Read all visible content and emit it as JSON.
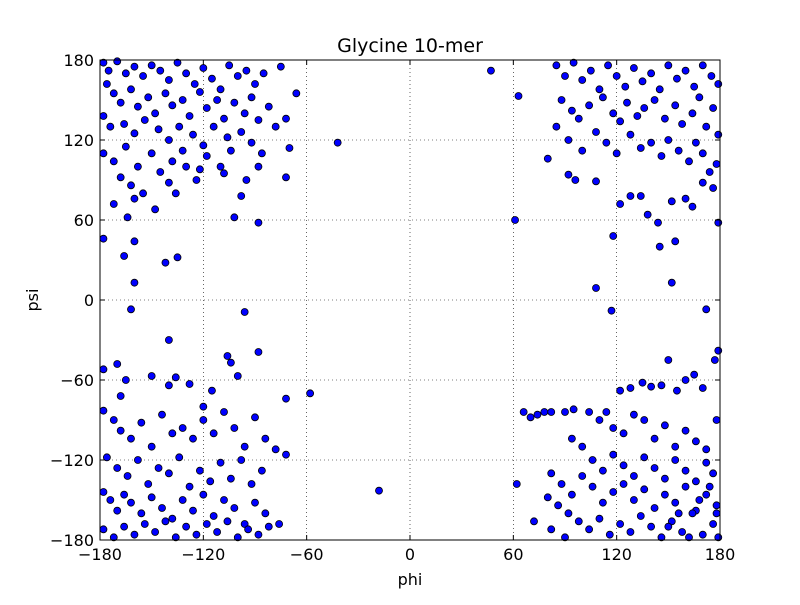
{
  "chart_data": {
    "type": "scatter",
    "title": "Glycine 10-mer",
    "xlabel": "phi",
    "ylabel": "psi",
    "xlim": [
      -180,
      180
    ],
    "ylim": [
      -180,
      180
    ],
    "xticks": [
      -180,
      -120,
      -60,
      0,
      60,
      120,
      180
    ],
    "yticks": [
      -180,
      -120,
      -60,
      0,
      60,
      120,
      180
    ],
    "xtick_labels": [
      "−180",
      "−120",
      "−60",
      "0",
      "60",
      "120",
      "180"
    ],
    "ytick_labels": [
      "−180",
      "−120",
      "−60",
      "0",
      "60",
      "120",
      "180"
    ],
    "grid": true,
    "marker_color": "#0000ff",
    "marker_edge_color": "#000000",
    "points": [
      [
        -178,
        178
      ],
      [
        -175,
        172
      ],
      [
        -170,
        179
      ],
      [
        -165,
        170
      ],
      [
        -160,
        175
      ],
      [
        -155,
        168
      ],
      [
        -150,
        176
      ],
      [
        -145,
        172
      ],
      [
        -140,
        165
      ],
      [
        -135,
        178
      ],
      [
        -130,
        170
      ],
      [
        -125,
        162
      ],
      [
        -120,
        174
      ],
      [
        -115,
        166
      ],
      [
        -110,
        158
      ],
      [
        -105,
        176
      ],
      [
        -100,
        168
      ],
      [
        -95,
        172
      ],
      [
        -90,
        162
      ],
      [
        -85,
        170
      ],
      [
        -176,
        162
      ],
      [
        -172,
        155
      ],
      [
        -168,
        148
      ],
      [
        -162,
        158
      ],
      [
        -158,
        145
      ],
      [
        -152,
        152
      ],
      [
        -148,
        140
      ],
      [
        -142,
        155
      ],
      [
        -138,
        146
      ],
      [
        -132,
        150
      ],
      [
        -128,
        138
      ],
      [
        -122,
        156
      ],
      [
        -118,
        144
      ],
      [
        -112,
        150
      ],
      [
        -108,
        136
      ],
      [
        -102,
        148
      ],
      [
        -96,
        140
      ],
      [
        -92,
        152
      ],
      [
        -88,
        135
      ],
      [
        -82,
        145
      ],
      [
        -178,
        138
      ],
      [
        -174,
        130
      ],
      [
        -166,
        132
      ],
      [
        -160,
        125
      ],
      [
        -154,
        135
      ],
      [
        -146,
        128
      ],
      [
        -140,
        120
      ],
      [
        -134,
        130
      ],
      [
        -126,
        124
      ],
      [
        -120,
        116
      ],
      [
        -114,
        130
      ],
      [
        -106,
        122
      ],
      [
        -98,
        126
      ],
      [
        -92,
        118
      ],
      [
        -86,
        110
      ],
      [
        -78,
        130
      ],
      [
        -72,
        136
      ],
      [
        -70,
        114
      ],
      [
        -66,
        155
      ],
      [
        -75,
        175
      ],
      [
        -178,
        110
      ],
      [
        -172,
        104
      ],
      [
        -165,
        115
      ],
      [
        -158,
        100
      ],
      [
        -150,
        110
      ],
      [
        -145,
        96
      ],
      [
        -138,
        104
      ],
      [
        -132,
        112
      ],
      [
        -122,
        98
      ],
      [
        -118,
        108
      ],
      [
        -110,
        100
      ],
      [
        -104,
        112
      ],
      [
        -95,
        90
      ],
      [
        -88,
        100
      ],
      [
        -72,
        92
      ],
      [
        -168,
        92
      ],
      [
        -162,
        86
      ],
      [
        -155,
        80
      ],
      [
        -148,
        68
      ],
      [
        -140,
        88
      ],
      [
        -172,
        72
      ],
      [
        -164,
        62
      ],
      [
        -160,
        76
      ],
      [
        -102,
        62
      ],
      [
        -88,
        58
      ],
      [
        -98,
        78
      ],
      [
        -108,
        95
      ],
      [
        -124,
        90
      ],
      [
        -130,
        100
      ],
      [
        -136,
        80
      ],
      [
        -178,
        46
      ],
      [
        -160,
        44
      ],
      [
        -166,
        33
      ],
      [
        -142,
        28
      ],
      [
        -135,
        32
      ],
      [
        -160,
        13
      ],
      [
        -162,
        -7
      ],
      [
        -96,
        -9
      ],
      [
        -178,
        -52
      ],
      [
        -170,
        -48
      ],
      [
        -165,
        -60
      ],
      [
        -150,
        -57
      ],
      [
        -140,
        -64
      ],
      [
        -136,
        -58
      ],
      [
        -128,
        -63
      ],
      [
        -115,
        -68
      ],
      [
        -106,
        -42
      ],
      [
        -104,
        -47
      ],
      [
        -100,
        -57
      ],
      [
        -88,
        -39
      ],
      [
        -140,
        -30
      ],
      [
        -72,
        -74
      ],
      [
        -58,
        -70
      ],
      [
        -168,
        -72
      ],
      [
        -120,
        -80
      ],
      [
        -178,
        -83
      ],
      [
        -172,
        -90
      ],
      [
        -168,
        -98
      ],
      [
        -162,
        -104
      ],
      [
        -156,
        -92
      ],
      [
        -150,
        -110
      ],
      [
        -144,
        -86
      ],
      [
        -138,
        -100
      ],
      [
        -132,
        -96
      ],
      [
        -126,
        -104
      ],
      [
        -120,
        -90
      ],
      [
        -114,
        -100
      ],
      [
        -108,
        -84
      ],
      [
        -102,
        -96
      ],
      [
        -96,
        -110
      ],
      [
        -90,
        -88
      ],
      [
        -84,
        -104
      ],
      [
        -78,
        -112
      ],
      [
        -72,
        -116
      ],
      [
        -176,
        -118
      ],
      [
        -170,
        -126
      ],
      [
        -164,
        -132
      ],
      [
        -158,
        -120
      ],
      [
        -152,
        -138
      ],
      [
        -146,
        -126
      ],
      [
        -140,
        -130
      ],
      [
        -134,
        -118
      ],
      [
        -128,
        -140
      ],
      [
        -122,
        -128
      ],
      [
        -116,
        -136
      ],
      [
        -110,
        -122
      ],
      [
        -104,
        -134
      ],
      [
        -98,
        -120
      ],
      [
        -92,
        -138
      ],
      [
        -86,
        -128
      ],
      [
        -178,
        -144
      ],
      [
        -174,
        -150
      ],
      [
        -170,
        -158
      ],
      [
        -166,
        -146
      ],
      [
        -162,
        -152
      ],
      [
        -156,
        -160
      ],
      [
        -150,
        -148
      ],
      [
        -144,
        -156
      ],
      [
        -138,
        -164
      ],
      [
        -132,
        -150
      ],
      [
        -126,
        -158
      ],
      [
        -120,
        -146
      ],
      [
        -114,
        -162
      ],
      [
        -108,
        -150
      ],
      [
        -102,
        -156
      ],
      [
        -96,
        -168
      ],
      [
        -90,
        -152
      ],
      [
        -84,
        -160
      ],
      [
        -76,
        -168
      ],
      [
        -178,
        -172
      ],
      [
        -172,
        -178
      ],
      [
        -166,
        -170
      ],
      [
        -160,
        -176
      ],
      [
        -154,
        -168
      ],
      [
        -148,
        -174
      ],
      [
        -142,
        -166
      ],
      [
        -136,
        -178
      ],
      [
        -130,
        -170
      ],
      [
        -124,
        -176
      ],
      [
        -118,
        -168
      ],
      [
        -112,
        -174
      ],
      [
        -106,
        -166
      ],
      [
        -100,
        -178
      ],
      [
        -94,
        -172
      ],
      [
        -88,
        -176
      ],
      [
        -82,
        -170
      ],
      [
        -42,
        118
      ],
      [
        47,
        172
      ],
      [
        -18,
        -143
      ],
      [
        63,
        153
      ],
      [
        61,
        60
      ],
      [
        62,
        -138
      ],
      [
        85,
        176
      ],
      [
        90,
        168
      ],
      [
        95,
        178
      ],
      [
        100,
        165
      ],
      [
        105,
        172
      ],
      [
        110,
        158
      ],
      [
        115,
        176
      ],
      [
        120,
        168
      ],
      [
        125,
        160
      ],
      [
        130,
        174
      ],
      [
        135,
        164
      ],
      [
        140,
        170
      ],
      [
        145,
        158
      ],
      [
        150,
        176
      ],
      [
        155,
        166
      ],
      [
        160,
        172
      ],
      [
        165,
        160
      ],
      [
        170,
        176
      ],
      [
        175,
        168
      ],
      [
        179,
        162
      ],
      [
        88,
        150
      ],
      [
        94,
        142
      ],
      [
        98,
        136
      ],
      [
        104,
        146
      ],
      [
        112,
        152
      ],
      [
        118,
        140
      ],
      [
        122,
        134
      ],
      [
        126,
        148
      ],
      [
        132,
        138
      ],
      [
        136,
        144
      ],
      [
        142,
        150
      ],
      [
        148,
        136
      ],
      [
        154,
        146
      ],
      [
        158,
        132
      ],
      [
        164,
        140
      ],
      [
        168,
        152
      ],
      [
        172,
        130
      ],
      [
        176,
        144
      ],
      [
        179,
        124
      ],
      [
        85,
        130
      ],
      [
        92,
        120
      ],
      [
        100,
        112
      ],
      [
        108,
        126
      ],
      [
        114,
        118
      ],
      [
        120,
        110
      ],
      [
        128,
        124
      ],
      [
        134,
        114
      ],
      [
        140,
        118
      ],
      [
        146,
        108
      ],
      [
        150,
        120
      ],
      [
        156,
        112
      ],
      [
        162,
        104
      ],
      [
        166,
        118
      ],
      [
        170,
        110
      ],
      [
        174,
        96
      ],
      [
        178,
        102
      ],
      [
        80,
        106
      ],
      [
        92,
        94
      ],
      [
        96,
        90
      ],
      [
        108,
        89
      ],
      [
        122,
        72
      ],
      [
        128,
        78
      ],
      [
        134,
        78
      ],
      [
        138,
        64
      ],
      [
        144,
        58
      ],
      [
        152,
        74
      ],
      [
        160,
        76
      ],
      [
        164,
        70
      ],
      [
        170,
        88
      ],
      [
        176,
        84
      ],
      [
        179,
        58
      ],
      [
        145,
        40
      ],
      [
        154,
        44
      ],
      [
        118,
        48
      ],
      [
        108,
        9
      ],
      [
        152,
        13
      ],
      [
        117,
        -8
      ],
      [
        172,
        -7
      ],
      [
        179,
        -38
      ],
      [
        177,
        -45
      ],
      [
        165,
        -56
      ],
      [
        160,
        -60
      ],
      [
        150,
        -45
      ],
      [
        135,
        -62
      ],
      [
        128,
        -66
      ],
      [
        122,
        -68
      ],
      [
        140,
        -65
      ],
      [
        146,
        -64
      ],
      [
        170,
        -66
      ],
      [
        155,
        -68
      ],
      [
        66,
        -84
      ],
      [
        70,
        -88
      ],
      [
        74,
        -86
      ],
      [
        78,
        -84
      ],
      [
        82,
        -84
      ],
      [
        90,
        -84
      ],
      [
        95,
        -82
      ],
      [
        104,
        -84
      ],
      [
        114,
        -84
      ],
      [
        110,
        -90
      ],
      [
        118,
        -96
      ],
      [
        124,
        -100
      ],
      [
        130,
        -86
      ],
      [
        136,
        -90
      ],
      [
        142,
        -104
      ],
      [
        148,
        -94
      ],
      [
        154,
        -110
      ],
      [
        160,
        -98
      ],
      [
        166,
        -106
      ],
      [
        172,
        -112
      ],
      [
        178,
        -90
      ],
      [
        94,
        -104
      ],
      [
        100,
        -110
      ],
      [
        106,
        -120
      ],
      [
        112,
        -128
      ],
      [
        118,
        -116
      ],
      [
        124,
        -124
      ],
      [
        130,
        -132
      ],
      [
        136,
        -118
      ],
      [
        142,
        -126
      ],
      [
        148,
        -134
      ],
      [
        154,
        -120
      ],
      [
        160,
        -128
      ],
      [
        166,
        -136
      ],
      [
        172,
        -122
      ],
      [
        176,
        -130
      ],
      [
        82,
        -130
      ],
      [
        88,
        -138
      ],
      [
        94,
        -146
      ],
      [
        100,
        -132
      ],
      [
        106,
        -140
      ],
      [
        112,
        -152
      ],
      [
        118,
        -144
      ],
      [
        124,
        -138
      ],
      [
        130,
        -150
      ],
      [
        136,
        -142
      ],
      [
        142,
        -156
      ],
      [
        148,
        -146
      ],
      [
        154,
        -152
      ],
      [
        160,
        -140
      ],
      [
        166,
        -158
      ],
      [
        172,
        -146
      ],
      [
        178,
        -154
      ],
      [
        80,
        -148
      ],
      [
        86,
        -154
      ],
      [
        92,
        -160
      ],
      [
        98,
        -166
      ],
      [
        104,
        -172
      ],
      [
        110,
        -164
      ],
      [
        116,
        -176
      ],
      [
        122,
        -168
      ],
      [
        128,
        -174
      ],
      [
        134,
        -162
      ],
      [
        140,
        -170
      ],
      [
        146,
        -178
      ],
      [
        152,
        -166
      ],
      [
        158,
        -174
      ],
      [
        164,
        -160
      ],
      [
        170,
        -176
      ],
      [
        176,
        -168
      ],
      [
        179,
        -178
      ],
      [
        72,
        -166
      ],
      [
        82,
        -172
      ],
      [
        90,
        -178
      ],
      [
        150,
        -170
      ],
      [
        156,
        -160
      ],
      [
        162,
        -178
      ],
      [
        168,
        -150
      ],
      [
        174,
        -140
      ],
      [
        178,
        -160
      ]
    ]
  }
}
